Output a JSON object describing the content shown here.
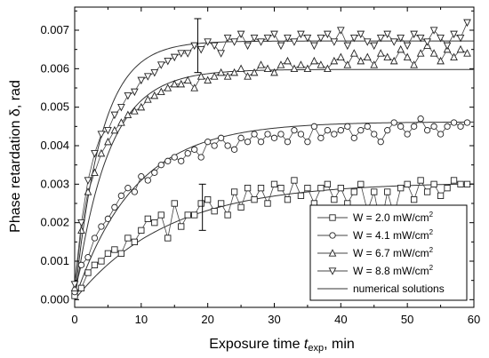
{
  "chart_data": {
    "type": "line",
    "xlabel_prefix": "Exposure time ",
    "xlabel_var": "t",
    "xlabel_sub": "exp",
    "xlabel_suffix": ", min",
    "ylabel": "Phase retardation δ, rad",
    "xlim": [
      0,
      60
    ],
    "ylim": [
      -0.0002,
      0.0076
    ],
    "xticks": [
      "0",
      "10",
      "20",
      "30",
      "40",
      "50",
      "60"
    ],
    "yticks": [
      "0.000",
      "0.001",
      "0.002",
      "0.003",
      "0.004",
      "0.005",
      "0.006",
      "0.007"
    ],
    "legend_position": "bottom-right",
    "series": [
      {
        "name": "W = 2.0 mW/cm",
        "superscript": "2",
        "marker": "square",
        "x": [
          0,
          1,
          2,
          3,
          4,
          5,
          6,
          7,
          8,
          9,
          10,
          11,
          12,
          13,
          14,
          15,
          16,
          17,
          18,
          19,
          20,
          21,
          22,
          23,
          24,
          25,
          26,
          27,
          28,
          29,
          30,
          31,
          32,
          33,
          34,
          35,
          36,
          37,
          38,
          39,
          40,
          41,
          42,
          43,
          44,
          45,
          46,
          47,
          48,
          49,
          50,
          51,
          52,
          53,
          54,
          55,
          56,
          57,
          58,
          59
        ],
        "values": [
          0.0001,
          0.0003,
          0.0007,
          0.0009,
          0.001,
          0.0012,
          0.0013,
          0.0012,
          0.0016,
          0.0015,
          0.0018,
          0.0021,
          0.002,
          0.0022,
          0.0016,
          0.0025,
          0.0019,
          0.0022,
          0.0022,
          0.0025,
          0.0026,
          0.0023,
          0.0025,
          0.0022,
          0.0028,
          0.0024,
          0.0029,
          0.0026,
          0.0029,
          0.0025,
          0.003,
          0.0029,
          0.0026,
          0.0031,
          0.0027,
          0.0029,
          0.0025,
          0.0029,
          0.003,
          0.0026,
          0.0029,
          0.0025,
          0.0028,
          0.003,
          0.0023,
          0.0028,
          0.0019,
          0.0028,
          0.0022,
          0.0029,
          0.003,
          0.0026,
          0.0031,
          0.0028,
          0.003,
          0.0027,
          0.0029,
          0.0031,
          0.003,
          0.003
        ]
      },
      {
        "name": "W = 4.1 mW/cm",
        "superscript": "2",
        "marker": "circle",
        "x": [
          0,
          1,
          2,
          3,
          4,
          5,
          6,
          7,
          8,
          9,
          10,
          11,
          12,
          13,
          14,
          15,
          16,
          17,
          18,
          19,
          20,
          21,
          22,
          23,
          24,
          25,
          26,
          27,
          28,
          29,
          30,
          31,
          32,
          33,
          34,
          35,
          36,
          37,
          38,
          39,
          40,
          41,
          42,
          43,
          44,
          45,
          46,
          47,
          48,
          49,
          50,
          51,
          52,
          53,
          54,
          55,
          56,
          57,
          58,
          59
        ],
        "values": [
          0.0002,
          0.0009,
          0.0011,
          0.0016,
          0.0019,
          0.0021,
          0.0024,
          0.0027,
          0.0029,
          0.0028,
          0.0032,
          0.0031,
          0.0033,
          0.0035,
          0.0036,
          0.0037,
          0.0036,
          0.0038,
          0.0039,
          0.0037,
          0.0041,
          0.004,
          0.0042,
          0.004,
          0.0039,
          0.0042,
          0.0041,
          0.0043,
          0.0041,
          0.0043,
          0.0042,
          0.0043,
          0.0041,
          0.0044,
          0.0043,
          0.0041,
          0.0045,
          0.0042,
          0.0044,
          0.0043,
          0.0044,
          0.0045,
          0.0042,
          0.0044,
          0.0045,
          0.0043,
          0.0041,
          0.0044,
          0.0046,
          0.0045,
          0.0043,
          0.0045,
          0.0047,
          0.0044,
          0.0045,
          0.0043,
          0.0045,
          0.0046,
          0.0045,
          0.0046
        ]
      },
      {
        "name": "W = 6.7 mW/cm",
        "superscript": "2",
        "marker": "triangle-up",
        "x": [
          0,
          1,
          2,
          3,
          4,
          5,
          6,
          7,
          8,
          9,
          10,
          11,
          12,
          13,
          14,
          15,
          16,
          17,
          18,
          19,
          20,
          21,
          22,
          23,
          24,
          25,
          26,
          27,
          28,
          29,
          30,
          31,
          32,
          33,
          34,
          35,
          36,
          37,
          38,
          39,
          40,
          41,
          42,
          43,
          44,
          45,
          46,
          47,
          48,
          49,
          50,
          51,
          52,
          53,
          54,
          55,
          56,
          57,
          58,
          59
        ],
        "values": [
          0.0003,
          0.0018,
          0.0028,
          0.0033,
          0.0038,
          0.0041,
          0.0044,
          0.0046,
          0.0048,
          0.0049,
          0.005,
          0.0052,
          0.0053,
          0.0054,
          0.0055,
          0.0056,
          0.0056,
          0.0057,
          0.0055,
          0.0058,
          0.0057,
          0.0058,
          0.0059,
          0.0058,
          0.0059,
          0.006,
          0.0058,
          0.0059,
          0.0061,
          0.006,
          0.0059,
          0.0061,
          0.0062,
          0.006,
          0.0061,
          0.006,
          0.0062,
          0.0061,
          0.006,
          0.0062,
          0.0063,
          0.0061,
          0.0064,
          0.0062,
          0.0063,
          0.0061,
          0.0064,
          0.0063,
          0.0062,
          0.0065,
          0.0063,
          0.0061,
          0.0064,
          0.0066,
          0.0064,
          0.0062,
          0.0065,
          0.0063,
          0.0065,
          0.0064
        ]
      },
      {
        "name": "W = 8.8 mW/cm",
        "superscript": "2",
        "marker": "triangle-down",
        "x": [
          0,
          1,
          2,
          3,
          4,
          5,
          6,
          7,
          8,
          9,
          10,
          11,
          12,
          13,
          14,
          15,
          16,
          17,
          18,
          19,
          20,
          21,
          22,
          23,
          24,
          25,
          26,
          27,
          28,
          29,
          30,
          31,
          32,
          33,
          34,
          35,
          36,
          37,
          38,
          39,
          40,
          41,
          42,
          43,
          44,
          45,
          46,
          47,
          48,
          49,
          50,
          51,
          52,
          53,
          54,
          55,
          56,
          57,
          58,
          59
        ],
        "values": [
          0.0004,
          0.002,
          0.0031,
          0.0038,
          0.0043,
          0.0044,
          0.0048,
          0.005,
          0.0053,
          0.0054,
          0.0057,
          0.0058,
          0.0059,
          0.0061,
          0.0062,
          0.0063,
          0.0064,
          0.0064,
          0.0066,
          0.0065,
          0.0067,
          0.0066,
          0.0064,
          0.0068,
          0.0067,
          0.0069,
          0.0066,
          0.0068,
          0.0067,
          0.0068,
          0.0069,
          0.0066,
          0.0068,
          0.0067,
          0.0069,
          0.0068,
          0.0066,
          0.0068,
          0.0069,
          0.0067,
          0.007,
          0.0066,
          0.0068,
          0.0069,
          0.0067,
          0.0066,
          0.0068,
          0.0069,
          0.0067,
          0.0068,
          0.0066,
          0.0069,
          0.0068,
          0.0067,
          0.007,
          0.0068,
          0.0066,
          0.0069,
          0.0068,
          0.0072
        ]
      }
    ],
    "fits": [
      {
        "amplitude": 0.00305,
        "tau": 14
      },
      {
        "amplitude": 0.00462,
        "tau": 9
      },
      {
        "amplitude": 0.00598,
        "tau": 5
      },
      {
        "amplitude": 0.00672,
        "tau": 4
      }
    ],
    "fit_legend": "numerical solutions",
    "error_bars": [
      {
        "x": 18.5,
        "y": 0.00662,
        "low": 0.0059,
        "high": 0.0073
      },
      {
        "x": 19.2,
        "y": 0.0024,
        "low": 0.0018,
        "high": 0.003
      }
    ]
  }
}
